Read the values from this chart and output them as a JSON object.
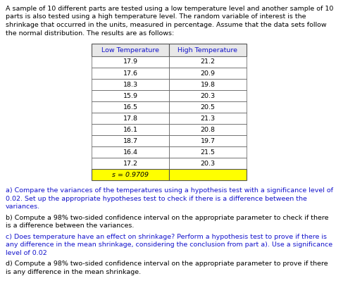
{
  "intro_text": "A sample of 10 different parts are tested using a low temperature level and another sample of 10\nparts is also tested using a high temperature level. The random variable of interest is the\nshrinkage that occurred in the units, measured in percentage. Assume that the data sets follow\nthe normal distribution. The results are as follows:",
  "col_headers": [
    "Low Temperature",
    "High Temperature"
  ],
  "low_temp": [
    "17.9",
    "17.6",
    "18.3",
    "15.9",
    "16.5",
    "17.8",
    "16.1",
    "18.7",
    "16.4",
    "17.2"
  ],
  "high_temp": [
    "21.2",
    "20.9",
    "19.8",
    "20.3",
    "20.5",
    "21.3",
    "20.8",
    "19.7",
    "21.5",
    "20.3"
  ],
  "s_label": "s = 0.9709",
  "s_bg_color": "#FFFF00",
  "table_border_color": "#555555",
  "header_text_color": "#1414CC",
  "part_a": "a) Compare the variances of the temperatures using a hypothesis test with a significance level of\n0.02. Set up the appropriate hypotheses test to check if there is a difference between the\nvariances.",
  "part_b": "b) Compute a 98% two-sided confidence interval on the appropriate parameter to check if there\nis a difference between the variances.",
  "part_c": "c) Does temperature have an effect on shrinkage? Perform a hypothesis test to prove if there is\nany difference in the mean shrinkage, considering the conclusion from part a). Use a significance\nlevel of 0.02",
  "part_d": "d) Compute a 98% two-sided confidence interval on the appropriate parameter to prove if there\nis any difference in the mean shrinkage.",
  "text_color_blue": "#1414CC",
  "text_color_black": "#000000",
  "bg_color": "#FFFFFF",
  "font_size_intro": 6.8,
  "font_size_table": 6.8,
  "font_size_parts": 6.8,
  "table_header_bg": "#E8E8E8"
}
